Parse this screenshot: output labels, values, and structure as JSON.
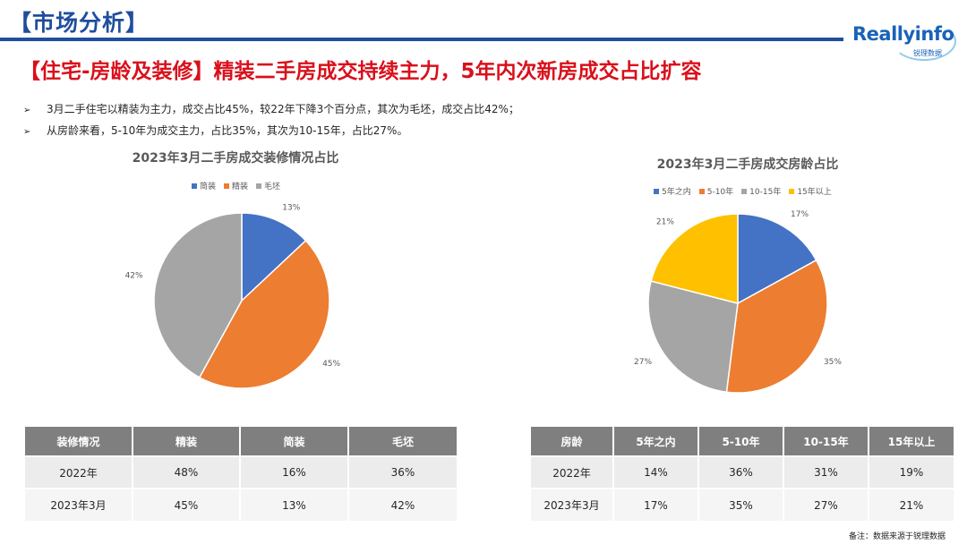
{
  "header": {
    "title": "【市场分析】"
  },
  "logo": {
    "brand": "Reallyinfo",
    "sub": "锐理数据"
  },
  "main_title": "【住宅-房龄及装修】精装二手房成交持续主力，5年内次新房成交占比扩容",
  "bullets": [
    "3月二手住宅以精装为主力，成交占比45%，较22年下降3个百分点，其次为毛坯，成交占比42%；",
    "从房龄来看，5-10年为成交主力，占比35%，其次为10-15年，占比27%。"
  ],
  "bullet_marker": "➢",
  "chart_data": [
    {
      "type": "pie",
      "title": "2023年3月二手房成交装修情况占比",
      "categories": [
        "简装",
        "精装",
        "毛坯"
      ],
      "values": [
        13,
        45,
        42
      ],
      "labels": [
        "13%",
        "45%",
        "42%"
      ],
      "colors": [
        "#4472c4",
        "#ed7d31",
        "#a5a5a5"
      ],
      "legend": "top"
    },
    {
      "type": "pie",
      "title": "2023年3月二手房成交房龄占比",
      "categories": [
        "5年之内",
        "5-10年",
        "10-15年",
        "15年以上"
      ],
      "values": [
        17,
        35,
        27,
        21
      ],
      "labels": [
        "17%",
        "35%",
        "27%",
        "21%"
      ],
      "colors": [
        "#4472c4",
        "#ed7d31",
        "#a5a5a5",
        "#ffc000"
      ],
      "legend": "top"
    }
  ],
  "table_decoration": {
    "headers": [
      "装修情况",
      "精装",
      "简装",
      "毛坯"
    ],
    "rows": [
      [
        "2022年",
        "48%",
        "16%",
        "36%"
      ],
      [
        "2023年3月",
        "45%",
        "13%",
        "42%"
      ]
    ]
  },
  "table_age": {
    "headers": [
      "房龄",
      "5年之内",
      "5-10年",
      "10-15年",
      "15年以上"
    ],
    "rows": [
      [
        "2022年",
        "14%",
        "36%",
        "31%",
        "19%"
      ],
      [
        "2023年3月",
        "17%",
        "35%",
        "27%",
        "21%"
      ]
    ]
  },
  "source_note": "备注：数据来源于锐理数据"
}
